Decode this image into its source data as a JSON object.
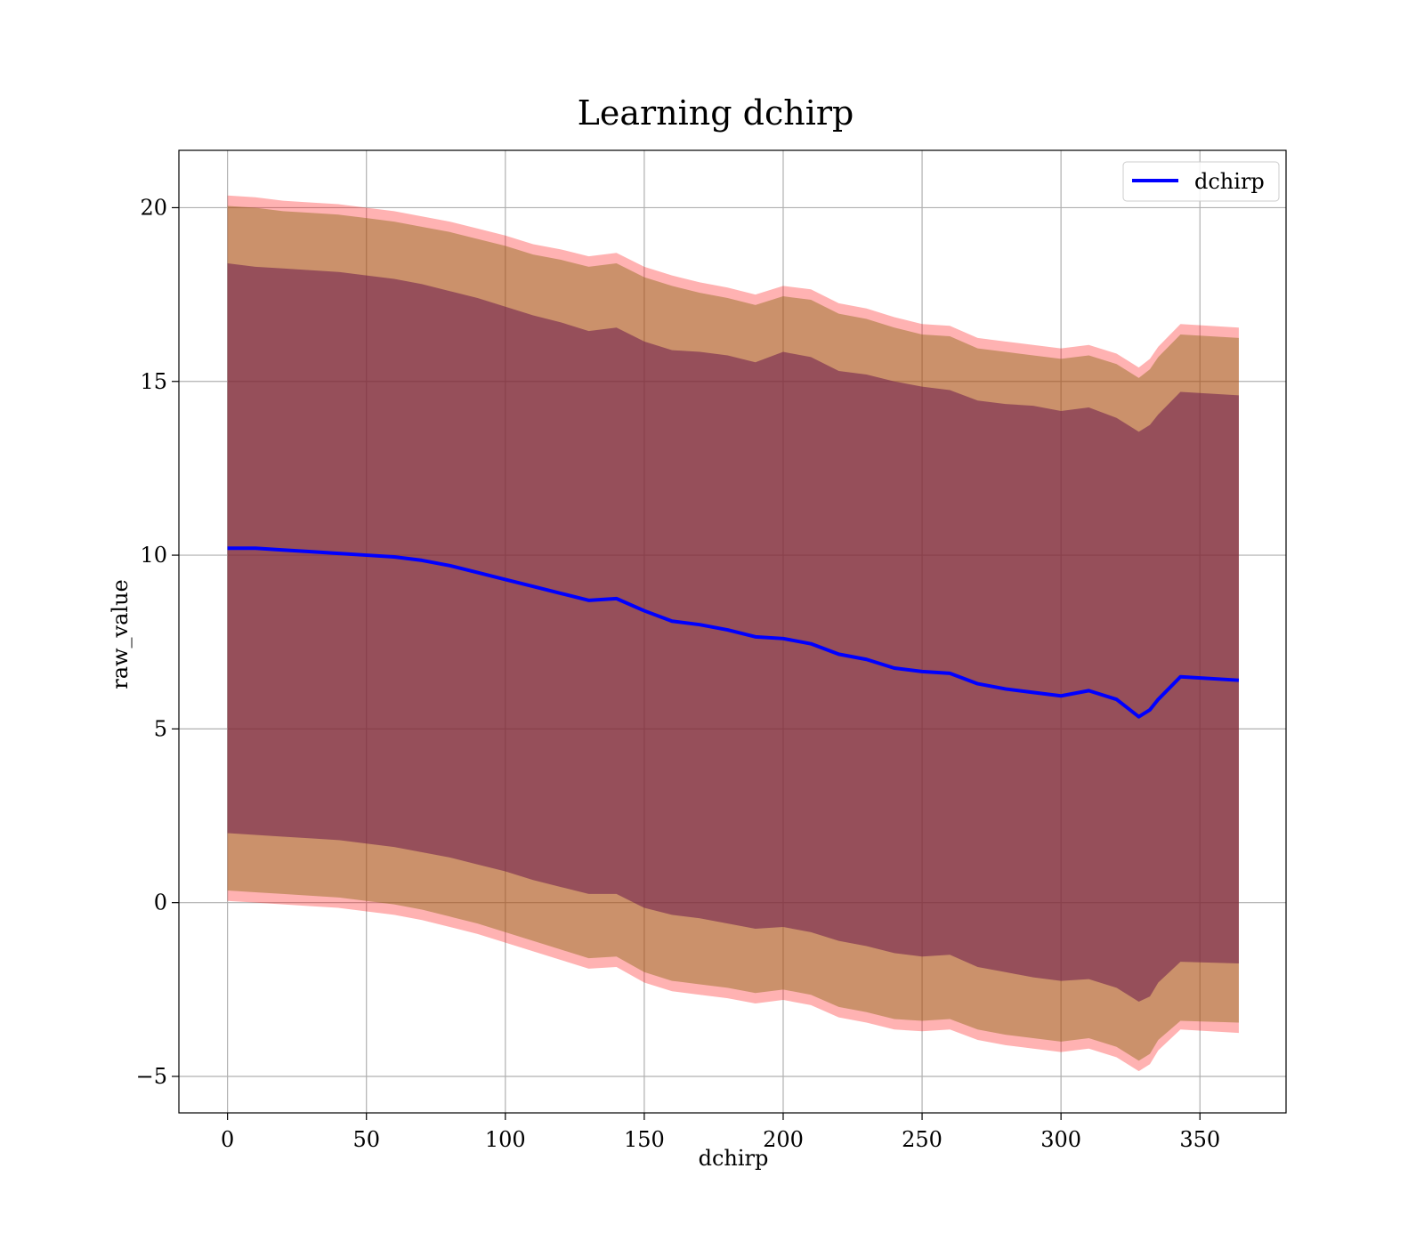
{
  "chart_data": {
    "type": "area",
    "title": "Learning dchirp",
    "xlabel": "dchirp",
    "ylabel": "raw_value",
    "xlim": [
      -17.5,
      381
    ],
    "ylim": [
      -6.05,
      21.65
    ],
    "xticks": [
      0,
      50,
      100,
      150,
      200,
      250,
      300,
      350
    ],
    "yticks": [
      -5,
      0,
      5,
      10,
      15,
      20
    ],
    "xtick_labels": [
      "0",
      "50",
      "100",
      "150",
      "200",
      "250",
      "300",
      "350"
    ],
    "ytick_labels": [
      "−5",
      "0",
      "5",
      "10",
      "15",
      "20"
    ],
    "grid": true,
    "legend": {
      "location": "upper right",
      "entries": [
        "dchirp"
      ]
    },
    "colors": {
      "line": "#0000ff",
      "band_outer": "#ff0000",
      "band_middle": "#8b6914",
      "band_inner": "#6b1a4d",
      "grid": "#b0b0b0",
      "axes": "#000000"
    },
    "x": [
      0,
      10,
      20,
      30,
      40,
      50,
      60,
      70,
      80,
      90,
      100,
      110,
      120,
      130,
      140,
      150,
      160,
      170,
      180,
      190,
      200,
      210,
      220,
      230,
      240,
      250,
      260,
      270,
      280,
      290,
      300,
      310,
      320,
      328,
      332,
      335,
      343,
      364
    ],
    "series": [
      {
        "name": "dchirp",
        "kind": "line",
        "values": [
          10.2,
          10.2,
          10.15,
          10.1,
          10.05,
          10.0,
          9.95,
          9.85,
          9.7,
          9.5,
          9.3,
          9.1,
          8.9,
          8.7,
          8.75,
          8.4,
          8.1,
          8.0,
          7.85,
          7.65,
          7.6,
          7.45,
          7.15,
          7.0,
          6.75,
          6.65,
          6.6,
          6.3,
          6.15,
          6.05,
          5.95,
          6.1,
          5.85,
          5.35,
          5.55,
          5.85,
          6.5,
          6.4
        ]
      },
      {
        "name": "inner_band",
        "kind": "band",
        "lower": [
          2.0,
          1.95,
          1.9,
          1.85,
          1.8,
          1.7,
          1.6,
          1.45,
          1.3,
          1.1,
          0.9,
          0.65,
          0.45,
          0.25,
          0.25,
          -0.15,
          -0.35,
          -0.45,
          -0.6,
          -0.75,
          -0.7,
          -0.85,
          -1.1,
          -1.25,
          -1.45,
          -1.55,
          -1.5,
          -1.85,
          -2.0,
          -2.15,
          -2.25,
          -2.2,
          -2.45,
          -2.85,
          -2.7,
          -2.3,
          -1.7,
          -1.75
        ],
        "upper": [
          18.4,
          18.3,
          18.25,
          18.2,
          18.15,
          18.05,
          17.95,
          17.8,
          17.6,
          17.4,
          17.15,
          16.9,
          16.7,
          16.45,
          16.55,
          16.15,
          15.9,
          15.85,
          15.75,
          15.55,
          15.85,
          15.7,
          15.3,
          15.2,
          15.0,
          14.85,
          14.75,
          14.45,
          14.35,
          14.3,
          14.15,
          14.25,
          13.95,
          13.55,
          13.75,
          14.05,
          14.7,
          14.6
        ]
      },
      {
        "name": "middle_band",
        "kind": "band",
        "lower": [
          0.35,
          0.3,
          0.25,
          0.2,
          0.15,
          0.05,
          -0.05,
          -0.2,
          -0.4,
          -0.6,
          -0.85,
          -1.1,
          -1.35,
          -1.6,
          -1.55,
          -2.0,
          -2.25,
          -2.35,
          -2.45,
          -2.6,
          -2.5,
          -2.65,
          -3.0,
          -3.15,
          -3.35,
          -3.4,
          -3.35,
          -3.65,
          -3.8,
          -3.9,
          -4.0,
          -3.9,
          -4.15,
          -4.55,
          -4.35,
          -3.95,
          -3.4,
          -3.45
        ],
        "upper": [
          20.05,
          20.0,
          19.9,
          19.85,
          19.8,
          19.7,
          19.6,
          19.45,
          19.3,
          19.1,
          18.9,
          18.65,
          18.5,
          18.3,
          18.4,
          18.0,
          17.75,
          17.55,
          17.4,
          17.2,
          17.45,
          17.35,
          16.95,
          16.8,
          16.55,
          16.35,
          16.3,
          15.95,
          15.85,
          15.75,
          15.65,
          15.75,
          15.5,
          15.1,
          15.35,
          15.7,
          16.35,
          16.25
        ]
      },
      {
        "name": "outer_band",
        "kind": "band",
        "lower": [
          0.05,
          0.0,
          -0.05,
          -0.1,
          -0.15,
          -0.25,
          -0.35,
          -0.5,
          -0.7,
          -0.9,
          -1.15,
          -1.4,
          -1.65,
          -1.9,
          -1.85,
          -2.3,
          -2.55,
          -2.65,
          -2.75,
          -2.9,
          -2.8,
          -2.95,
          -3.3,
          -3.45,
          -3.65,
          -3.7,
          -3.65,
          -3.95,
          -4.1,
          -4.2,
          -4.3,
          -4.2,
          -4.45,
          -4.85,
          -4.65,
          -4.25,
          -3.65,
          -3.75
        ],
        "upper": [
          20.35,
          20.3,
          20.2,
          20.15,
          20.1,
          20.0,
          19.9,
          19.75,
          19.6,
          19.4,
          19.2,
          18.95,
          18.8,
          18.6,
          18.7,
          18.3,
          18.05,
          17.85,
          17.7,
          17.5,
          17.75,
          17.65,
          17.25,
          17.1,
          16.85,
          16.65,
          16.6,
          16.25,
          16.15,
          16.05,
          15.95,
          16.05,
          15.8,
          15.4,
          15.65,
          16.0,
          16.65,
          16.55
        ]
      }
    ]
  }
}
